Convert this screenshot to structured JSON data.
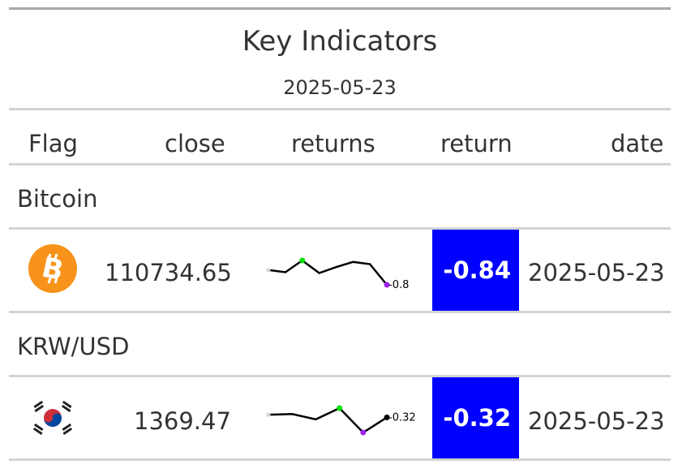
{
  "header": {
    "title": "Key Indicators",
    "subtitle": "2025-05-23"
  },
  "columns": {
    "flag": "Flag",
    "close": "close",
    "returns": "returns",
    "return": "return",
    "date": "date"
  },
  "groups": [
    {
      "label": "Bitcoin",
      "flag_icon": "bitcoin-icon",
      "close": "110734.65",
      "returns_series": [
        2.1,
        1.8,
        3.4,
        1.7,
        2.5,
        3.2,
        2.9,
        0.1
      ],
      "returns_label": "-0.8",
      "return": "-0.84",
      "return_color": "#0000ff",
      "date": "2025-05-23"
    },
    {
      "label": "KRW/USD",
      "flag_icon": "south-korea-flag-icon",
      "close": "1369.47",
      "returns_series": [
        0.02,
        0.03,
        -0.05,
        0.12,
        -0.25,
        -0.02
      ],
      "returns_label": "-0.32",
      "return": "-0.32",
      "return_color": "#0000ff",
      "date": "2025-05-23"
    }
  ],
  "colors": {
    "return_bg": "#0000ff",
    "spark_max": "#00e000",
    "spark_min": "#a020f0",
    "rule": "#d3d3d3"
  }
}
